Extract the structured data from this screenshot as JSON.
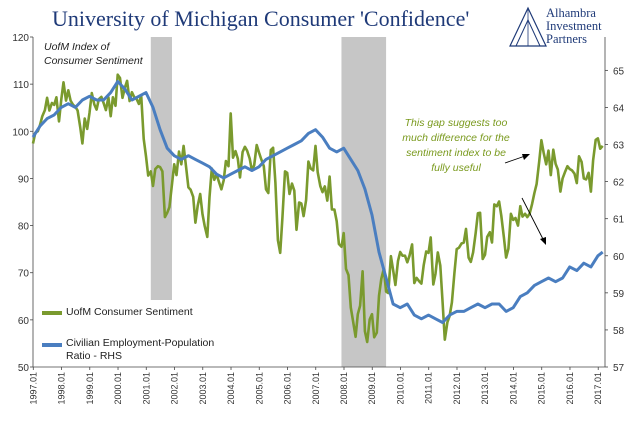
{
  "page": {
    "title": "University of Michigan Consumer 'Confidence'",
    "inset_note_line1": "UofM Index of",
    "inset_note_line2": "Consumer Sentiment",
    "logo_line1": "Alhambra",
    "logo_line2": "Investment",
    "logo_line3": "Partners",
    "annotation_line1": "This gap suggests too",
    "annotation_line2": "much difference for  the",
    "annotation_line3": "sentiment index to be",
    "annotation_line4": "fully useful"
  },
  "colors": {
    "sentiment": "#7a9a2e",
    "employment": "#4a7ec0",
    "recession": "#c6c6c6",
    "title": "#1f3a78",
    "annotation": "#7a9a1e"
  },
  "chart_data": {
    "type": "line",
    "title": "University of Michigan Consumer 'Confidence'",
    "x_tick_labels": [
      "1997.01",
      "1998.01",
      "1999.01",
      "2000.01",
      "2001.01",
      "2002.01",
      "2003.01",
      "2004.01",
      "2005.01",
      "2006.01",
      "2007.01",
      "2008.01",
      "2009.01",
      "2010.01",
      "2011.01",
      "2012.01",
      "2013.01",
      "2014.01",
      "2015.01",
      "2016.01",
      "2017.01"
    ],
    "xlim": [
      1997.0,
      2017.25
    ],
    "left_axis": {
      "ylim": [
        50,
        120
      ],
      "ticks": [
        50,
        60,
        70,
        80,
        90,
        100,
        110,
        120
      ]
    },
    "right_axis": {
      "ylim": [
        57,
        65.9
      ],
      "ticks": [
        57,
        58,
        59,
        60,
        61,
        62,
        63,
        64,
        65
      ]
    },
    "recessions": [
      [
        2001.17,
        2001.92
      ],
      [
        2007.92,
        2009.5
      ]
    ],
    "legend": [
      "UofM Consumer Sentiment",
      "Civilian Employment-Population Ratio - RHS"
    ],
    "legend_placement": "bottom-left",
    "series": [
      {
        "name": "UofM Consumer Sentiment",
        "axis": "left",
        "x": [
          1997.0,
          1997.08,
          1997.17,
          1997.25,
          1997.33,
          1997.42,
          1997.5,
          1997.58,
          1997.67,
          1997.75,
          1997.83,
          1997.92,
          1998.0,
          1998.08,
          1998.17,
          1998.25,
          1998.33,
          1998.42,
          1998.5,
          1998.58,
          1998.67,
          1998.75,
          1998.83,
          1998.92,
          1999.0,
          1999.08,
          1999.17,
          1999.25,
          1999.33,
          1999.42,
          1999.5,
          1999.58,
          1999.67,
          1999.75,
          1999.83,
          1999.92,
          2000.0,
          2000.08,
          2000.17,
          2000.25,
          2000.33,
          2000.42,
          2000.5,
          2000.58,
          2000.67,
          2000.75,
          2000.83,
          2000.92,
          2001.0,
          2001.08,
          2001.17,
          2001.25,
          2001.33,
          2001.42,
          2001.5,
          2001.58,
          2001.67,
          2001.75,
          2001.83,
          2001.92,
          2002.0,
          2002.08,
          2002.17,
          2002.25,
          2002.33,
          2002.42,
          2002.5,
          2002.58,
          2002.67,
          2002.75,
          2002.83,
          2002.92,
          2003.0,
          2003.08,
          2003.17,
          2003.25,
          2003.33,
          2003.42,
          2003.5,
          2003.58,
          2003.67,
          2003.75,
          2003.83,
          2003.92,
          2004.0,
          2004.08,
          2004.17,
          2004.25,
          2004.33,
          2004.42,
          2004.5,
          2004.58,
          2004.67,
          2004.75,
          2004.83,
          2004.92,
          2005.0,
          2005.08,
          2005.17,
          2005.25,
          2005.33,
          2005.42,
          2005.5,
          2005.58,
          2005.67,
          2005.75,
          2005.83,
          2005.92,
          2006.0,
          2006.08,
          2006.17,
          2006.25,
          2006.33,
          2006.42,
          2006.5,
          2006.58,
          2006.67,
          2006.75,
          2006.83,
          2006.92,
          2007.0,
          2007.08,
          2007.17,
          2007.25,
          2007.33,
          2007.42,
          2007.5,
          2007.58,
          2007.67,
          2007.75,
          2007.83,
          2007.92,
          2008.0,
          2008.08,
          2008.17,
          2008.25,
          2008.33,
          2008.42,
          2008.5,
          2008.58,
          2008.67,
          2008.75,
          2008.83,
          2008.92,
          2009.0,
          2009.08,
          2009.17,
          2009.25,
          2009.33,
          2009.42,
          2009.5,
          2009.58,
          2009.67,
          2009.75,
          2009.83,
          2009.92,
          2010.0,
          2010.08,
          2010.17,
          2010.25,
          2010.33,
          2010.42,
          2010.5,
          2010.58,
          2010.67,
          2010.75,
          2010.83,
          2010.92,
          2011.0,
          2011.08,
          2011.17,
          2011.25,
          2011.33,
          2011.42,
          2011.5,
          2011.58,
          2011.67,
          2011.75,
          2011.83,
          2011.92,
          2012.0,
          2012.08,
          2012.17,
          2012.25,
          2012.33,
          2012.42,
          2012.5,
          2012.58,
          2012.67,
          2012.75,
          2012.83,
          2012.92,
          2013.0,
          2013.08,
          2013.17,
          2013.25,
          2013.33,
          2013.42,
          2013.5,
          2013.58,
          2013.67,
          2013.75,
          2013.83,
          2013.92,
          2014.0,
          2014.08,
          2014.17,
          2014.25,
          2014.33,
          2014.42,
          2014.5,
          2014.58,
          2014.67,
          2014.75,
          2014.83,
          2014.92,
          2015.0,
          2015.08,
          2015.17,
          2015.25,
          2015.33,
          2015.42,
          2015.5,
          2015.58,
          2015.67,
          2015.75,
          2015.83,
          2015.92,
          2016.0,
          2016.08,
          2016.17,
          2016.25,
          2016.33,
          2016.42,
          2016.5,
          2016.58,
          2016.67,
          2016.75,
          2016.83,
          2016.92,
          2017.0,
          2017.08,
          2017.17
        ],
        "values": [
          97.4,
          99.7,
          100.0,
          101.4,
          103.2,
          104.5,
          107.1,
          104.4,
          106.0,
          105.6,
          107.2,
          102.1,
          106.6,
          110.4,
          106.5,
          108.7,
          106.5,
          105.6,
          105.2,
          104.4,
          100.9,
          97.4,
          102.7,
          100.5,
          103.9,
          108.1,
          105.7,
          104.6,
          106.8,
          107.3,
          106.0,
          104.5,
          107.2,
          103.2,
          107.2,
          105.4,
          112.0,
          111.3,
          107.1,
          109.2,
          110.7,
          106.4,
          108.3,
          107.3,
          106.8,
          105.8,
          107.6,
          98.4,
          94.7,
          90.6,
          91.5,
          88.4,
          92.0,
          92.6,
          92.4,
          91.5,
          81.8,
          82.7,
          83.9,
          88.8,
          93.0,
          90.7,
          95.7,
          93.0,
          96.9,
          92.4,
          88.1,
          87.6,
          86.1,
          80.6,
          84.2,
          86.7,
          82.4,
          79.9,
          77.6,
          86.0,
          92.1,
          89.7,
          90.9,
          89.3,
          87.7,
          89.6,
          93.7,
          92.6,
          103.8,
          94.4,
          95.8,
          94.2,
          90.2,
          95.6,
          96.7,
          95.9,
          94.2,
          91.7,
          92.8,
          97.1,
          95.5,
          94.1,
          92.6,
          87.7,
          86.9,
          96.0,
          96.5,
          89.1,
          76.9,
          74.2,
          81.6,
          91.5,
          91.2,
          86.7,
          88.9,
          87.4,
          79.1,
          84.9,
          84.7,
          82.0,
          85.4,
          93.6,
          92.1,
          91.7,
          96.9,
          91.3,
          88.4,
          87.1,
          88.3,
          85.3,
          90.4,
          83.4,
          83.4,
          80.9,
          76.1,
          75.5,
          78.4,
          70.8,
          69.5,
          62.6,
          59.8,
          56.4,
          61.2,
          63.0,
          70.3,
          57.6,
          55.3,
          60.1,
          61.2,
          56.3,
          57.3,
          65.1,
          68.7,
          70.8,
          66.0,
          65.7,
          73.5,
          70.6,
          67.4,
          72.5,
          74.4,
          73.6,
          73.6,
          72.2,
          73.6,
          76.0,
          67.8,
          68.9,
          68.2,
          67.7,
          71.6,
          74.5,
          74.2,
          77.5,
          67.5,
          69.8,
          74.3,
          71.5,
          63.7,
          55.8,
          59.5,
          60.8,
          63.7,
          69.9,
          75.0,
          75.3,
          76.2,
          76.4,
          79.3,
          73.2,
          72.3,
          74.3,
          78.3,
          82.6,
          82.7,
          72.9,
          73.8,
          77.6,
          78.6,
          76.4,
          84.5,
          84.1,
          85.1,
          82.1,
          77.5,
          73.2,
          75.1,
          82.5,
          81.2,
          81.6,
          80.0,
          84.1,
          81.9,
          82.5,
          81.8,
          82.5,
          84.6,
          86.9,
          88.8,
          93.6,
          98.1,
          95.4,
          93.0,
          95.9,
          90.7,
          96.1,
          93.1,
          91.9,
          87.2,
          90.0,
          91.3,
          92.6,
          92.0,
          91.7,
          91.0,
          89.0,
          94.7,
          93.5,
          90.0,
          89.8,
          91.2,
          87.2,
          93.8,
          98.2,
          98.5,
          96.3,
          96.9
        ]
      },
      {
        "name": "Civilian Employment-Population Ratio - RHS",
        "axis": "right",
        "x": [
          1997.0,
          1997.25,
          1997.5,
          1997.75,
          1998.0,
          1998.25,
          1998.5,
          1998.75,
          1999.0,
          1999.25,
          1999.5,
          1999.75,
          2000.0,
          2000.25,
          2000.5,
          2000.75,
          2001.0,
          2001.25,
          2001.5,
          2001.75,
          2002.0,
          2002.25,
          2002.5,
          2002.75,
          2003.0,
          2003.25,
          2003.5,
          2003.75,
          2004.0,
          2004.25,
          2004.5,
          2004.75,
          2005.0,
          2005.25,
          2005.5,
          2005.75,
          2006.0,
          2006.25,
          2006.5,
          2006.75,
          2007.0,
          2007.25,
          2007.5,
          2007.75,
          2008.0,
          2008.25,
          2008.5,
          2008.75,
          2009.0,
          2009.25,
          2009.5,
          2009.75,
          2010.0,
          2010.25,
          2010.5,
          2010.75,
          2011.0,
          2011.25,
          2011.5,
          2011.75,
          2012.0,
          2012.25,
          2012.5,
          2012.75,
          2013.0,
          2013.25,
          2013.5,
          2013.75,
          2014.0,
          2014.25,
          2014.5,
          2014.75,
          2015.0,
          2015.25,
          2015.5,
          2015.75,
          2016.0,
          2016.25,
          2016.5,
          2016.75,
          2017.0,
          2017.17
        ],
        "values": [
          63.2,
          63.5,
          63.7,
          63.8,
          64.0,
          64.1,
          64.0,
          64.2,
          64.3,
          64.2,
          64.2,
          64.4,
          64.7,
          64.5,
          64.2,
          64.3,
          64.4,
          64.0,
          63.4,
          62.9,
          62.7,
          62.6,
          62.7,
          62.6,
          62.5,
          62.4,
          62.2,
          62.1,
          62.2,
          62.3,
          62.4,
          62.3,
          62.4,
          62.6,
          62.7,
          62.8,
          62.9,
          63.0,
          63.1,
          63.3,
          63.4,
          63.2,
          62.9,
          62.8,
          62.9,
          62.6,
          62.3,
          61.8,
          61.1,
          60.1,
          59.4,
          58.7,
          58.6,
          58.7,
          58.4,
          58.3,
          58.4,
          58.3,
          58.2,
          58.4,
          58.5,
          58.5,
          58.6,
          58.7,
          58.6,
          58.7,
          58.7,
          58.5,
          58.6,
          58.9,
          59.0,
          59.2,
          59.3,
          59.4,
          59.3,
          59.4,
          59.7,
          59.6,
          59.8,
          59.7,
          60.0,
          60.1
        ]
      }
    ]
  }
}
